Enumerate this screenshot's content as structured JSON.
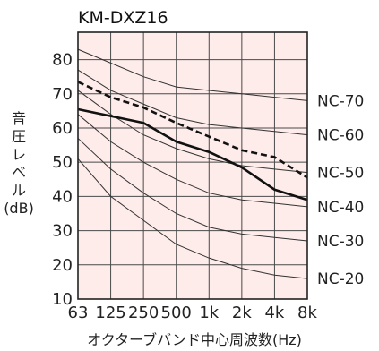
{
  "chart_data": {
    "type": "line",
    "title": "KM-DXZ16",
    "xlabel": "オクターブバンド中心周波数(Hz)",
    "ylabel_lines": [
      "音",
      "圧",
      "レ",
      "ベ",
      "ル",
      "(dB)"
    ],
    "categories": [
      "63",
      "125",
      "250",
      "500",
      "1k",
      "2k",
      "4k",
      "8k"
    ],
    "yticks": [
      10,
      20,
      30,
      40,
      50,
      60,
      70,
      80
    ],
    "ylim": [
      10,
      88
    ],
    "grid": true,
    "series": [
      {
        "name": "",
        "style": "solid-bold",
        "values": [
          65.5,
          63.5,
          61.5,
          56,
          53,
          48.5,
          42,
          39
        ]
      },
      {
        "name": "",
        "style": "dashed-bold",
        "values": [
          73.5,
          69,
          66,
          61.5,
          57.5,
          53.5,
          51.5,
          45.5
        ]
      }
    ],
    "nc_curves": [
      {
        "name": "NC-70",
        "values": [
          83,
          79,
          75,
          72,
          71,
          70,
          69,
          68
        ]
      },
      {
        "name": "NC-60",
        "values": [
          77,
          71,
          67,
          63,
          61,
          60,
          59,
          58
        ]
      },
      {
        "name": "NC-50",
        "values": [
          71,
          64,
          58,
          54,
          51,
          49,
          48,
          47
        ]
      },
      {
        "name": "NC-40",
        "values": [
          64,
          56,
          50,
          45,
          41,
          39,
          38,
          37
        ]
      },
      {
        "name": "NC-30",
        "values": [
          57,
          48,
          41,
          35,
          31,
          29,
          28,
          27
        ]
      },
      {
        "name": "NC-20",
        "values": [
          51,
          40,
          33,
          26,
          22,
          19,
          17,
          16
        ]
      }
    ],
    "colors": {
      "plot_background": "#fdecea",
      "grid": "#4a4a4a",
      "nc_curve": "#333333",
      "series": "#111111"
    }
  }
}
